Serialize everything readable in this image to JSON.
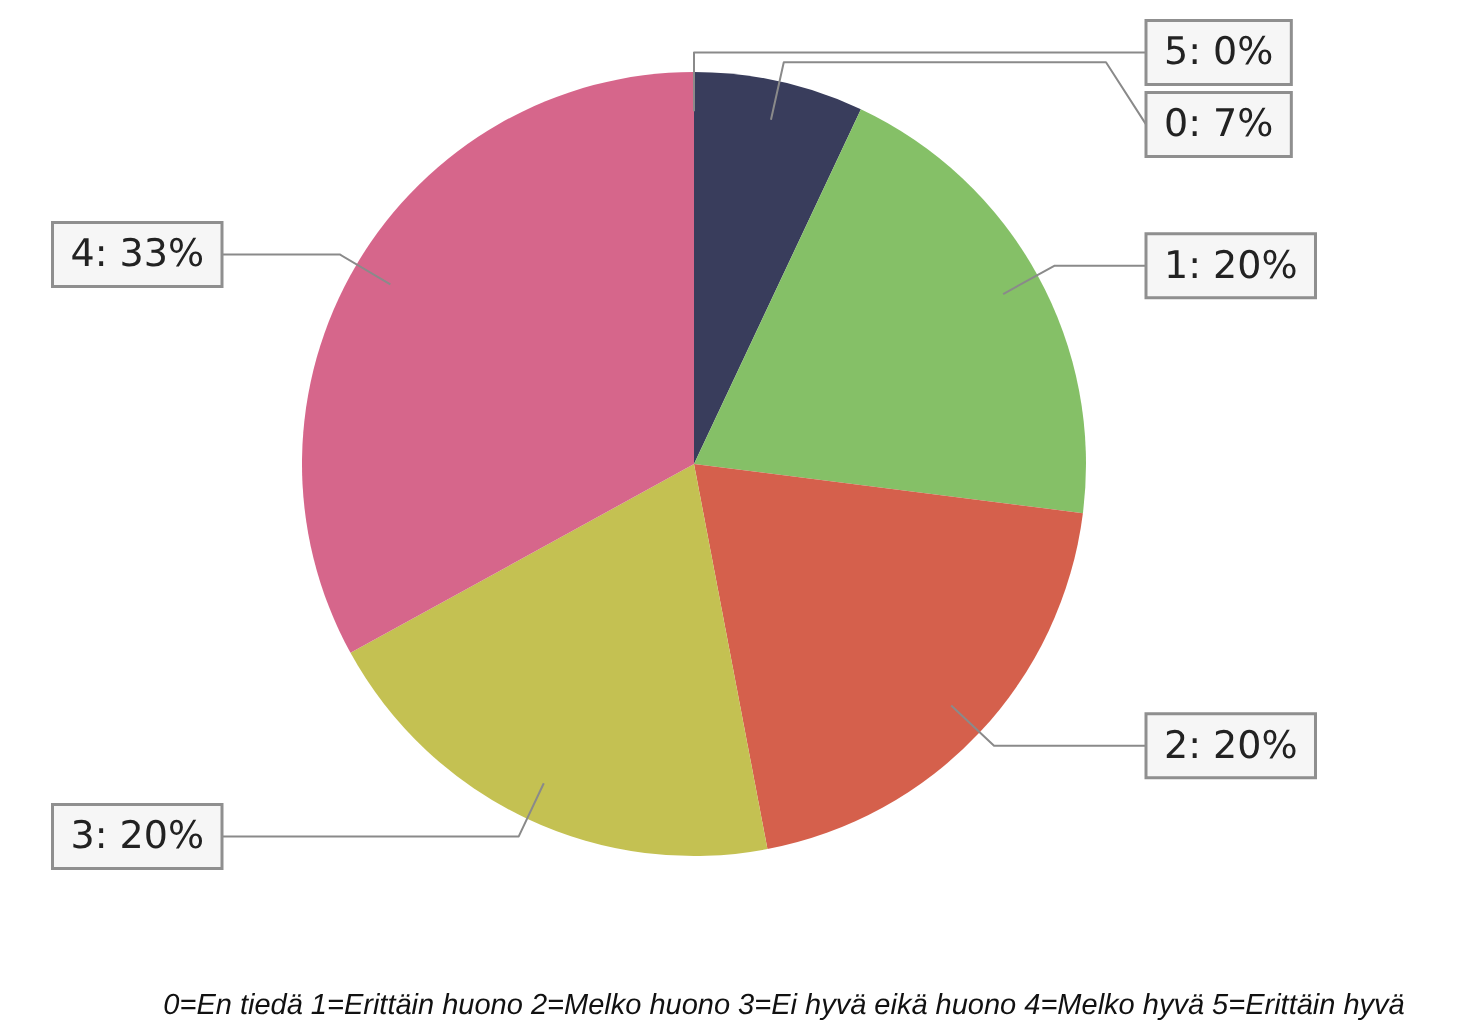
{
  "chart_data": {
    "type": "pie",
    "values": [
      7,
      20,
      20,
      20,
      33,
      0
    ],
    "colors": [
      "#393d5c",
      "#85c067",
      "#d5604c",
      "#c4c152",
      "#d6668b",
      null
    ],
    "value_labels": [
      "0: 7%",
      "1: 20%",
      "2: 20%",
      "3: 20%",
      "4: 33%",
      "5: 0%"
    ],
    "annotations": [
      "0=En tiedä 1=Erittäin huono 2=Melko huono 3=Ei hyvä eikä huono 4=Melko hyvä 5=Erittäin hyvä"
    ]
  }
}
